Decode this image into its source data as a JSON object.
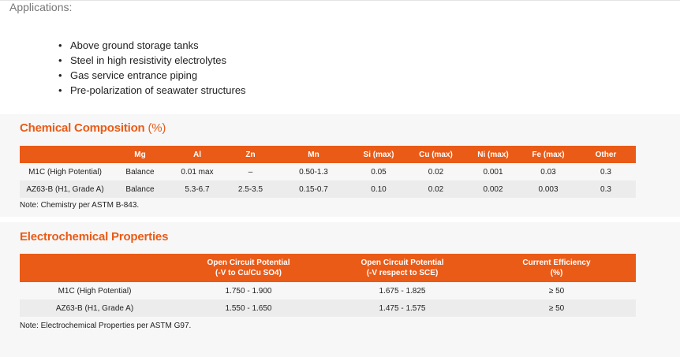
{
  "applications": {
    "label": "Applications:",
    "items": [
      "Above ground storage tanks",
      "Steel in high resistivity electrolytes",
      "Gas service entrance piping",
      "Pre-polarization of seawater structures"
    ]
  },
  "chemical": {
    "title": "Chemical Composition",
    "title_unit": "(%)",
    "headers": [
      "",
      "Mg",
      "Al",
      "Zn",
      "Mn",
      "Si (max)",
      "Cu (max)",
      "Ni (max)",
      "Fe (max)",
      "Other"
    ],
    "rows": [
      [
        "M1C (High Potential)",
        "Balance",
        "0.01 max",
        "–",
        "0.50-1.3",
        "0.05",
        "0.02",
        "0.001",
        "0.03",
        "0.3"
      ],
      [
        "AZ63-B (H1, Grade A)",
        "Balance",
        "5.3-6.7",
        "2.5-3.5",
        "0.15-0.7",
        "0.10",
        "0.02",
        "0.002",
        "0.003",
        "0.3"
      ]
    ],
    "note": "Note: Chemistry per ASTM B-843."
  },
  "electrochemical": {
    "title": "Electrochemical Properties",
    "headers": [
      [
        "",
        ""
      ],
      [
        "Open Circuit Potential",
        "(-V to Cu/Cu SO4)"
      ],
      [
        "Open Circuit Potential",
        "(-V respect to SCE)"
      ],
      [
        "Current Efficiency",
        "(%)"
      ]
    ],
    "rows": [
      [
        "M1C (High Potential)",
        "1.750 - 1.900",
        "1.675 - 1.825",
        "≥ 50"
      ],
      [
        "AZ63-B (H1, Grade A)",
        "1.550 - 1.650",
        "1.475 - 1.575",
        "≥ 50"
      ]
    ],
    "note": "Note: Electrochemical Properties per ASTM G97."
  }
}
